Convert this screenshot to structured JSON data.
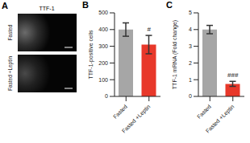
{
  "panel_a": {
    "title": "A",
    "label": "TTF-1",
    "rows": [
      "Fasted",
      "Fasted +Leptin"
    ]
  },
  "chart_data": [
    {
      "type": "bar",
      "title": "B",
      "y_label": "TTF-1-positive cells",
      "categories": [
        "Fasted",
        "Fasted +Leptin"
      ],
      "values": [
        400,
        310
      ],
      "errors": [
        40,
        55
      ],
      "colors": [
        "#a6a6a6",
        "#e8382a"
      ],
      "ylim": [
        0,
        500
      ],
      "yticks": [
        0,
        100,
        200,
        300,
        400,
        500
      ],
      "annotations": [
        {
          "category": "Fasted +Leptin",
          "text": "#"
        }
      ]
    },
    {
      "type": "bar",
      "title": "C",
      "y_label": "TTF-1 mRNA (Fold change)",
      "categories": [
        "Fasted",
        "Fasted +Leptin"
      ],
      "values": [
        4.0,
        0.75
      ],
      "errors": [
        0.25,
        0.15
      ],
      "colors": [
        "#a6a6a6",
        "#e8382a"
      ],
      "ylim": [
        0,
        5
      ],
      "yticks": [
        0,
        1,
        2,
        3,
        4,
        5
      ],
      "annotations": [
        {
          "category": "Fasted +Leptin",
          "text": "###"
        }
      ]
    }
  ]
}
